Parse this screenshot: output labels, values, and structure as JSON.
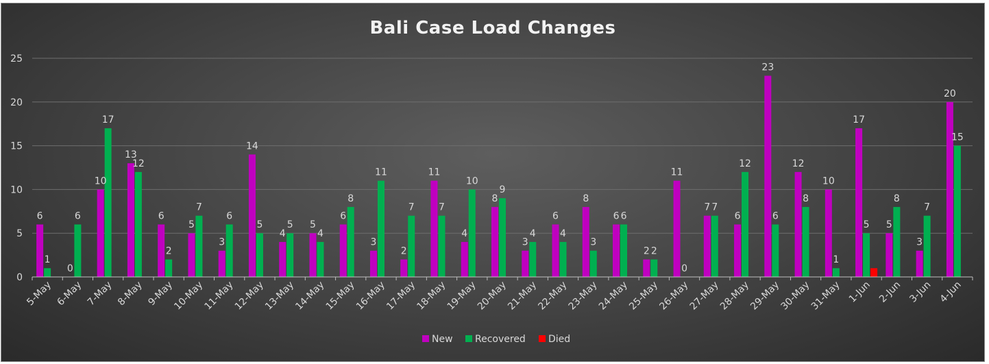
{
  "chart_data": {
    "type": "bar",
    "title": "Bali Case Load Changes",
    "xlabel": "",
    "ylabel": "",
    "ylim": [
      0,
      25
    ],
    "yticks": [
      0,
      5,
      10,
      15,
      20,
      25
    ],
    "grid": true,
    "legend_position": "bottom",
    "categories": [
      "5-May",
      "6-May",
      "7-May",
      "8-May",
      "9-May",
      "10-May",
      "11-May",
      "12-May",
      "13-May",
      "14-May",
      "15-May",
      "16-May",
      "17-May",
      "18-May",
      "19-May",
      "20-May",
      "21-May",
      "22-May",
      "23-May",
      "24-May",
      "25-May",
      "26-May",
      "27-May",
      "28-May",
      "29-May",
      "30-May",
      "31-May",
      "1-Jun",
      "2-Jun",
      "3-Jun",
      "4-Jun"
    ],
    "series": [
      {
        "name": "New",
        "color": "#c000c0",
        "values": [
          6,
          0,
          10,
          13,
          6,
          5,
          3,
          14,
          4,
          5,
          6,
          3,
          2,
          11,
          4,
          8,
          3,
          6,
          8,
          6,
          2,
          11,
          7,
          6,
          23,
          12,
          10,
          17,
          5,
          3,
          20
        ],
        "labels": [
          "6",
          "0",
          "10",
          "13",
          "6",
          "5",
          "3",
          "14",
          "4",
          "5",
          "6",
          "3",
          "2",
          "11",
          "4",
          "8",
          "3",
          "6",
          "8",
          "6",
          "2",
          "11",
          "7",
          "6",
          "23",
          "12",
          "10",
          "17",
          "5",
          "3",
          "20"
        ]
      },
      {
        "name": "Recovered",
        "color": "#00b050",
        "values": [
          1,
          6,
          17,
          12,
          2,
          7,
          6,
          5,
          5,
          4,
          8,
          11,
          7,
          7,
          10,
          9,
          4,
          4,
          3,
          6,
          2,
          0,
          7,
          12,
          6,
          8,
          1,
          5,
          8,
          7,
          15
        ],
        "labels": [
          "1",
          "6",
          "17",
          "12",
          "2",
          "7",
          "6",
          "5",
          "5",
          "4",
          "8",
          "11",
          "7",
          "7",
          "10",
          "9",
          "4",
          "4",
          "3",
          "6",
          "2",
          "0",
          "7",
          "12",
          "6",
          "8",
          "1",
          "5",
          "8",
          "7",
          "15"
        ]
      },
      {
        "name": "Died",
        "color": "#ff0000",
        "values": [
          0,
          0,
          0,
          0,
          0,
          0,
          0,
          0,
          0,
          0,
          0,
          0,
          0,
          0,
          0,
          0,
          0,
          0,
          0,
          0,
          0,
          0,
          0,
          0,
          0,
          0,
          0,
          1,
          0,
          0,
          0
        ],
        "labels": [
          "",
          "",
          "",
          "",
          "",
          "",
          "",
          "",
          "",
          "",
          "",
          "",
          "",
          "",
          "",
          "",
          "",
          "",
          "",
          "",
          "",
          "",
          "",
          "",
          "",
          "",
          "",
          "",
          "",
          "",
          ""
        ]
      }
    ]
  }
}
